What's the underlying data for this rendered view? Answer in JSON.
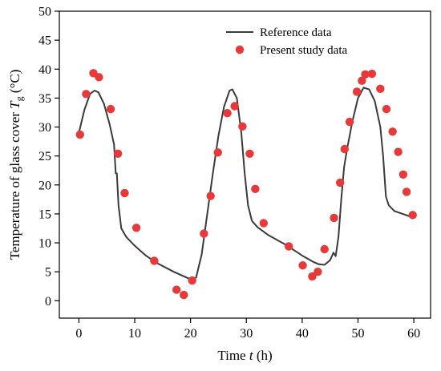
{
  "chart_data": {
    "type": "line+scatter",
    "xlabel": {
      "prefix": "Time ",
      "var": "t",
      "suffix": " (h)"
    },
    "ylabel": {
      "prefix": "Temperature of glass cover ",
      "var": "T",
      "sub": "g",
      "suffix": " (°C)"
    },
    "xlim": [
      -3.5,
      63
    ],
    "ylim": [
      -3,
      50
    ],
    "xticks": [
      0,
      10,
      20,
      30,
      40,
      50,
      60
    ],
    "yticks": [
      0,
      5,
      10,
      15,
      20,
      25,
      30,
      35,
      40,
      45,
      50
    ],
    "legend_position": "top-right",
    "series": [
      {
        "name": "Reference data",
        "style": "line",
        "color": "#3a3a3a",
        "points": [
          [
            0,
            29.0
          ],
          [
            1,
            33.0
          ],
          [
            2,
            35.7
          ],
          [
            2.8,
            36.3
          ],
          [
            3.5,
            36.0
          ],
          [
            4.5,
            34.0
          ],
          [
            5.5,
            30.5
          ],
          [
            6.3,
            27.0
          ],
          [
            6.6,
            22.0
          ],
          [
            6.8,
            22.0
          ],
          [
            7.1,
            16.5
          ],
          [
            7.6,
            12.5
          ],
          [
            8.5,
            11.0
          ],
          [
            10,
            9.5
          ],
          [
            12,
            7.8
          ],
          [
            14,
            6.5
          ],
          [
            17,
            5.0
          ],
          [
            20,
            3.7
          ],
          [
            21,
            4.0
          ],
          [
            22,
            8.0
          ],
          [
            23,
            15.0
          ],
          [
            24,
            22.0
          ],
          [
            25,
            28.5
          ],
          [
            26,
            33.5
          ],
          [
            27,
            36.3
          ],
          [
            27.5,
            36.5
          ],
          [
            28.3,
            35.0
          ],
          [
            29.1,
            29.0
          ],
          [
            29.7,
            22.0
          ],
          [
            30.3,
            16.5
          ],
          [
            31,
            13.8
          ],
          [
            32,
            12.7
          ],
          [
            34,
            11.3
          ],
          [
            37,
            9.7
          ],
          [
            40,
            7.8
          ],
          [
            42,
            6.7
          ],
          [
            43,
            6.3
          ],
          [
            44,
            6.2
          ],
          [
            45,
            7.0
          ],
          [
            45.6,
            8.3
          ],
          [
            46,
            7.7
          ],
          [
            46.5,
            11.0
          ],
          [
            47,
            17.5
          ],
          [
            47.5,
            23.0
          ],
          [
            48,
            26.0
          ],
          [
            49,
            31.0
          ],
          [
            50,
            35.0
          ],
          [
            51,
            36.8
          ],
          [
            52,
            36.5
          ],
          [
            53,
            34.5
          ],
          [
            54,
            30.0
          ],
          [
            54.5,
            25.0
          ],
          [
            55,
            18.0
          ],
          [
            55.5,
            16.5
          ],
          [
            56.5,
            15.5
          ],
          [
            58,
            15.0
          ],
          [
            59.5,
            14.5
          ]
        ]
      },
      {
        "name": "Present study data",
        "style": "marker",
        "color": "#e8393a",
        "points": [
          [
            0.2,
            28.7
          ],
          [
            1.3,
            35.7
          ],
          [
            2.6,
            39.3
          ],
          [
            3.6,
            38.6
          ],
          [
            5.7,
            33.1
          ],
          [
            7.0,
            25.4
          ],
          [
            8.2,
            18.6
          ],
          [
            10.3,
            12.6
          ],
          [
            13.5,
            6.9
          ],
          [
            17.5,
            1.9
          ],
          [
            18.8,
            1.0
          ],
          [
            20.3,
            3.5
          ],
          [
            22.4,
            11.6
          ],
          [
            23.6,
            18.1
          ],
          [
            24.9,
            25.6
          ],
          [
            26.6,
            32.4
          ],
          [
            27.9,
            33.6
          ],
          [
            29.3,
            30.1
          ],
          [
            30.6,
            25.4
          ],
          [
            31.6,
            19.3
          ],
          [
            33.1,
            13.4
          ],
          [
            37.6,
            9.4
          ],
          [
            40.1,
            6.1
          ],
          [
            41.8,
            4.2
          ],
          [
            42.8,
            5.0
          ],
          [
            44.0,
            8.9
          ],
          [
            45.7,
            14.3
          ],
          [
            46.8,
            20.4
          ],
          [
            47.6,
            26.2
          ],
          [
            48.5,
            30.9
          ],
          [
            49.8,
            36.1
          ],
          [
            50.7,
            38.0
          ],
          [
            51.3,
            39.1
          ],
          [
            52.5,
            39.2
          ],
          [
            54.0,
            36.6
          ],
          [
            55.1,
            33.1
          ],
          [
            56.2,
            29.2
          ],
          [
            57.2,
            25.7
          ],
          [
            58.1,
            21.8
          ],
          [
            58.7,
            18.8
          ],
          [
            59.8,
            14.8
          ]
        ]
      }
    ]
  }
}
